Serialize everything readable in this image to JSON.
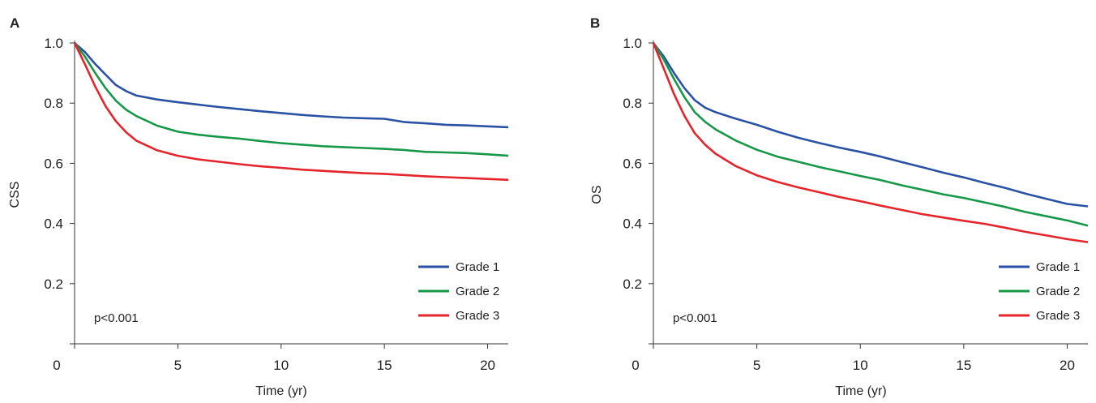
{
  "chart_data": [
    {
      "type": "line",
      "panel_label": "A",
      "xlabel": "Time (yr)",
      "ylabel": "CSS",
      "xlim": [
        0,
        21
      ],
      "ylim": [
        0,
        1.0
      ],
      "x_ticks": [
        0,
        5,
        10,
        15,
        20
      ],
      "y_ticks": [
        0.2,
        0.4,
        0.6,
        0.8,
        1.0
      ],
      "y_tick_labels": [
        "0.2",
        "0.4",
        "0.6",
        "0.8",
        "1.0"
      ],
      "grid": false,
      "legend_position": "bottom-right",
      "annotation": "p<0.001",
      "series": [
        {
          "name": "Grade 1",
          "color": "#2a52a4",
          "x": [
            0,
            0.5,
            1,
            1.5,
            2,
            2.5,
            3,
            4,
            5,
            6,
            7,
            8,
            9,
            10,
            11,
            12,
            13,
            14,
            15,
            16,
            17,
            18,
            19,
            20,
            21
          ],
          "y": [
            1.0,
            0.97,
            0.93,
            0.895,
            0.86,
            0.84,
            0.825,
            0.812,
            0.803,
            0.795,
            0.787,
            0.78,
            0.773,
            0.767,
            0.761,
            0.756,
            0.752,
            0.75,
            0.748,
            0.737,
            0.733,
            0.728,
            0.726,
            0.723,
            0.72
          ]
        },
        {
          "name": "Grade 2",
          "color": "#169848",
          "x": [
            0,
            0.5,
            1,
            1.5,
            2,
            2.5,
            3,
            4,
            5,
            6,
            7,
            8,
            9,
            10,
            11,
            12,
            13,
            14,
            15,
            16,
            17,
            18,
            19,
            20,
            21
          ],
          "y": [
            1.0,
            0.955,
            0.9,
            0.85,
            0.808,
            0.778,
            0.757,
            0.725,
            0.705,
            0.695,
            0.688,
            0.682,
            0.674,
            0.667,
            0.662,
            0.657,
            0.654,
            0.651,
            0.648,
            0.644,
            0.638,
            0.636,
            0.634,
            0.63,
            0.625
          ]
        },
        {
          "name": "Grade 3",
          "color": "#e4252b",
          "x": [
            0,
            0.5,
            1,
            1.5,
            2,
            2.5,
            3,
            4,
            5,
            6,
            7,
            8,
            9,
            10,
            11,
            12,
            13,
            14,
            15,
            16,
            17,
            18,
            19,
            20,
            21
          ],
          "y": [
            1.0,
            0.93,
            0.855,
            0.79,
            0.74,
            0.703,
            0.675,
            0.643,
            0.625,
            0.613,
            0.605,
            0.597,
            0.59,
            0.585,
            0.579,
            0.575,
            0.571,
            0.567,
            0.565,
            0.561,
            0.557,
            0.554,
            0.551,
            0.548,
            0.545
          ]
        }
      ]
    },
    {
      "type": "line",
      "panel_label": "B",
      "xlabel": "Time (yr)",
      "ylabel": "OS",
      "xlim": [
        0,
        21
      ],
      "ylim": [
        0,
        1.0
      ],
      "x_ticks": [
        0,
        5,
        10,
        15,
        20
      ],
      "y_ticks": [
        0.2,
        0.4,
        0.6,
        0.8,
        1.0
      ],
      "y_tick_labels": [
        "0.2",
        "0.4",
        "0.6",
        "0.8",
        "1.0"
      ],
      "grid": false,
      "legend_position": "bottom-right",
      "annotation": "p<0.001",
      "series": [
        {
          "name": "Grade 1",
          "color": "#2a52a4",
          "x": [
            0,
            0.5,
            1,
            1.5,
            2,
            2.5,
            3,
            4,
            5,
            6,
            7,
            8,
            9,
            10,
            11,
            12,
            13,
            14,
            15,
            16,
            17,
            18,
            19,
            20,
            21
          ],
          "y": [
            1.0,
            0.955,
            0.9,
            0.85,
            0.81,
            0.785,
            0.77,
            0.748,
            0.728,
            0.705,
            0.685,
            0.668,
            0.652,
            0.638,
            0.622,
            0.604,
            0.587,
            0.569,
            0.553,
            0.535,
            0.518,
            0.499,
            0.482,
            0.465,
            0.457
          ]
        },
        {
          "name": "Grade 2",
          "color": "#169848",
          "x": [
            0,
            0.5,
            1,
            1.5,
            2,
            2.5,
            3,
            4,
            5,
            6,
            7,
            8,
            9,
            10,
            11,
            12,
            13,
            14,
            15,
            16,
            17,
            18,
            19,
            20,
            21
          ],
          "y": [
            1.0,
            0.945,
            0.88,
            0.82,
            0.77,
            0.738,
            0.713,
            0.675,
            0.645,
            0.622,
            0.605,
            0.588,
            0.573,
            0.558,
            0.544,
            0.527,
            0.512,
            0.497,
            0.485,
            0.47,
            0.455,
            0.438,
            0.424,
            0.41,
            0.393
          ]
        },
        {
          "name": "Grade 3",
          "color": "#e4252b",
          "x": [
            0,
            0.5,
            1,
            1.5,
            2,
            2.5,
            3,
            4,
            5,
            6,
            7,
            8,
            9,
            10,
            11,
            12,
            13,
            14,
            15,
            16,
            17,
            18,
            19,
            20,
            21
          ],
          "y": [
            1.0,
            0.915,
            0.83,
            0.758,
            0.7,
            0.662,
            0.632,
            0.59,
            0.56,
            0.538,
            0.52,
            0.504,
            0.488,
            0.474,
            0.459,
            0.445,
            0.431,
            0.42,
            0.409,
            0.399,
            0.386,
            0.372,
            0.36,
            0.348,
            0.338
          ]
        }
      ]
    }
  ]
}
